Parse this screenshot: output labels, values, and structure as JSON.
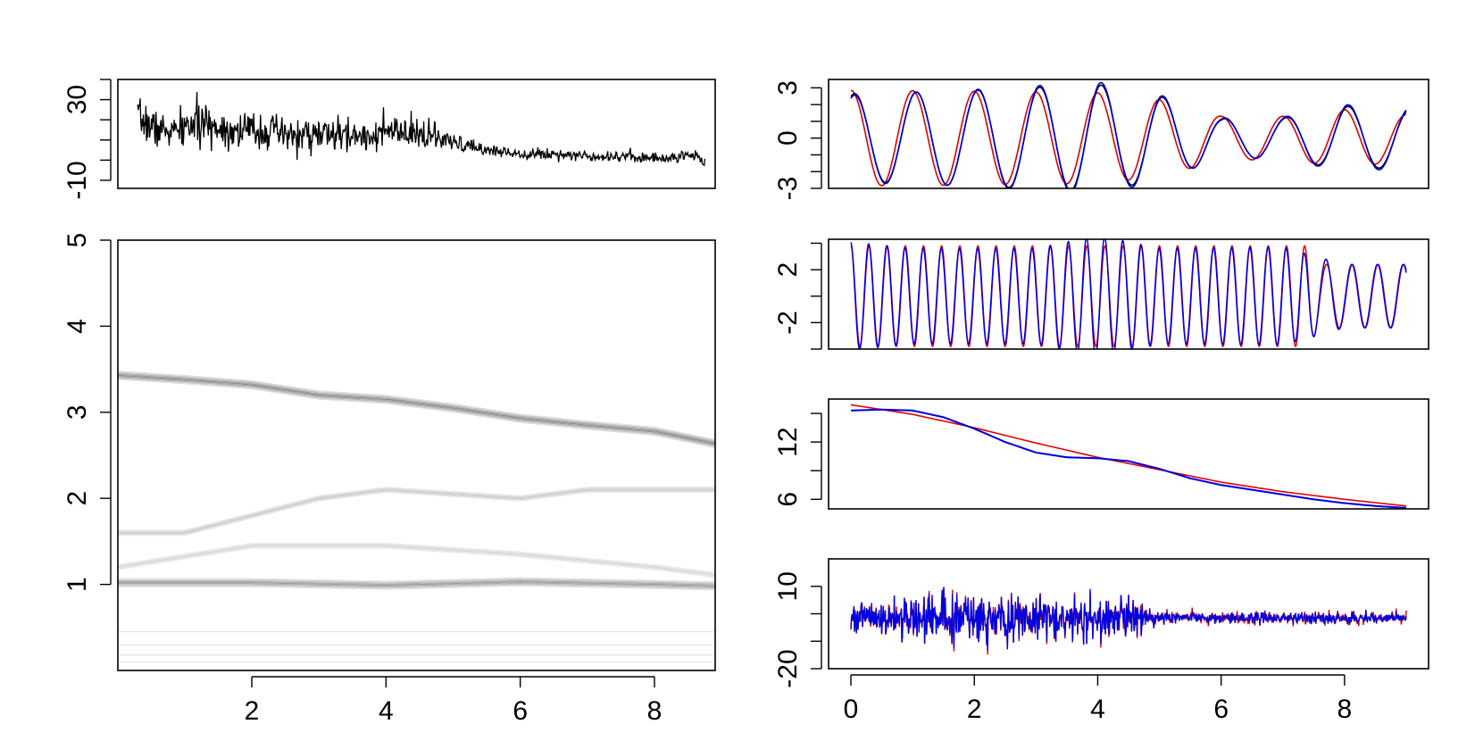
{
  "chart_data": [
    {
      "id": "signal",
      "type": "line",
      "xlim": [
        0,
        9
      ],
      "ylim": [
        -14,
        40
      ],
      "yticks": [
        -10,
        0,
        10,
        20,
        30,
        40
      ],
      "ytick_labels": [
        "-10",
        "30"
      ],
      "series": [
        {
          "name": "signal",
          "color": "#000000",
          "x": [
            0.3,
            0.6,
            0.9,
            1.1,
            1.4,
            1.7,
            2.0,
            2.3,
            2.45,
            2.7,
            3.0,
            3.3,
            3.6,
            3.9,
            4.1,
            4.3,
            4.6,
            4.9,
            5.2,
            5.5,
            5.8,
            6.1,
            6.4,
            6.7,
            7.0,
            7.3,
            7.6,
            7.9,
            8.2,
            8.45,
            8.6,
            8.75
          ],
          "values": [
            21,
            15,
            14,
            18,
            17,
            15,
            15,
            14,
            12,
            12,
            13,
            12,
            12,
            13,
            14,
            12,
            13,
            9,
            7,
            5,
            4,
            3,
            3,
            3,
            2,
            2,
            2,
            1,
            1,
            2,
            3,
            -1
          ],
          "noise_amp": [
            10,
            10,
            10,
            12,
            10,
            10,
            10,
            10,
            12,
            9,
            9,
            9,
            9,
            9,
            10,
            9,
            8,
            6,
            4,
            3,
            3,
            3,
            3,
            3,
            3,
            3,
            3,
            3,
            3,
            3,
            3,
            3
          ]
        }
      ]
    },
    {
      "id": "spectrogram",
      "type": "heatmap",
      "xlim": [
        0,
        9
      ],
      "ylim": [
        0,
        5
      ],
      "yticks": [
        1,
        2,
        3,
        4,
        5
      ],
      "ytick_labels": [
        "1",
        "2",
        "3",
        "4",
        "5"
      ],
      "ridges": [
        {
          "x": [
            0,
            1,
            2,
            3,
            4,
            5,
            6,
            7,
            8,
            9
          ],
          "y": [
            3.43,
            3.38,
            3.32,
            3.2,
            3.15,
            3.05,
            2.93,
            2.85,
            2.78,
            2.62
          ],
          "weight": 0.8
        },
        {
          "x": [
            0,
            2,
            4,
            6,
            8,
            9
          ],
          "y": [
            1.02,
            1.02,
            0.99,
            1.03,
            1.0,
            0.98
          ],
          "weight": 0.7
        },
        {
          "x": [
            0,
            1,
            2,
            3,
            4,
            5,
            6,
            7
          ],
          "y": [
            1.6,
            1.6,
            1.8,
            2.0,
            2.1,
            2.05,
            2.0,
            2.1
          ],
          "weight": 0.35
        },
        {
          "x": [
            0,
            2,
            4,
            6,
            8,
            9
          ],
          "y": [
            1.2,
            1.45,
            1.45,
            1.35,
            1.2,
            1.1
          ],
          "weight": 0.25
        },
        {
          "x": [
            0,
            9
          ],
          "y": [
            0.45,
            0.45
          ],
          "weight": 0.15
        },
        {
          "x": [
            0,
            9
          ],
          "y": [
            0.3,
            0.3
          ],
          "weight": 0.15
        },
        {
          "x": [
            0,
            9
          ],
          "y": [
            0.18,
            0.18
          ],
          "weight": 0.15
        },
        {
          "x": [
            0,
            9
          ],
          "y": [
            0.1,
            0.1
          ],
          "weight": 0.15
        }
      ],
      "xticks": [
        2,
        4,
        6,
        8
      ],
      "xtick_labels": [
        "2",
        "4",
        "6",
        "8"
      ]
    },
    {
      "id": "component-1",
      "type": "line",
      "xlim": [
        0,
        9
      ],
      "ylim": [
        -3,
        3.5
      ],
      "yticks": [
        -3,
        -2,
        -1,
        0,
        1,
        2,
        3
      ],
      "ytick_labels": [
        "-3",
        "0",
        "3"
      ],
      "series": [
        {
          "name": "true",
          "color": "#e00000",
          "freq": 1.0,
          "amp_x": [
            0,
            2,
            4,
            5,
            6,
            7,
            8,
            9
          ],
          "amp": [
            2.85,
            2.8,
            2.7,
            2.3,
            1.3,
            1.3,
            1.7,
            1.4
          ]
        },
        {
          "name": "estimate-black",
          "color": "#000000",
          "freq": 1.0,
          "amp_x": [
            0,
            2,
            4,
            5,
            6,
            7,
            8,
            9
          ],
          "amp": [
            2.65,
            2.85,
            3.2,
            2.5,
            1.2,
            1.2,
            1.9,
            1.7
          ]
        },
        {
          "name": "estimate-blue",
          "color": "#0000e0",
          "freq": 1.0,
          "amp_x": [
            0,
            2,
            4,
            5,
            6,
            7,
            8,
            9
          ],
          "amp": [
            2.55,
            2.9,
            3.35,
            2.6,
            1.15,
            1.25,
            2.0,
            1.8
          ]
        }
      ]
    },
    {
      "id": "component-2",
      "type": "line",
      "xlim": [
        0,
        9
      ],
      "ylim": [
        -4,
        4.3
      ],
      "yticks": [
        -4,
        -2,
        0,
        2,
        4
      ],
      "ytick_labels": [
        "-2",
        "2"
      ],
      "series": [
        {
          "name": "true",
          "color": "#e00000",
          "freq_x": [
            0,
            7.4,
            7.6,
            9
          ],
          "freq": [
            3.4,
            3.4,
            2.4,
            2.4
          ],
          "amp_x": [
            0,
            7.4,
            7.6,
            9
          ],
          "amp": [
            3.8,
            3.8,
            2.4,
            2.4
          ]
        },
        {
          "name": "estimate-blue",
          "color": "#0000e0",
          "freq_x": [
            0,
            7.4,
            7.6,
            9
          ],
          "freq": [
            3.4,
            3.4,
            2.4,
            2.4
          ],
          "amp_x": [
            0,
            1,
            3,
            4,
            5,
            7,
            8,
            9
          ],
          "amp": [
            4.1,
            3.6,
            3.6,
            4.6,
            3.6,
            3.7,
            2.4,
            2.4
          ]
        }
      ]
    },
    {
      "id": "trend",
      "type": "line",
      "xlim": [
        0,
        9
      ],
      "ylim": [
        5,
        16.5
      ],
      "yticks": [
        6,
        9,
        12,
        15
      ],
      "ytick_labels": [
        "6",
        "12"
      ],
      "series": [
        {
          "name": "true",
          "color": "#e00000",
          "x": [
            0,
            1,
            2,
            3,
            4,
            5,
            6,
            7,
            8,
            9
          ],
          "values": [
            15.9,
            14.9,
            13.5,
            11.9,
            10.4,
            9.1,
            7.8,
            6.8,
            6.0,
            5.3
          ]
        },
        {
          "name": "estimate-black",
          "color": "#000000",
          "x": [
            0,
            0.5,
            1,
            1.5,
            2,
            2.5,
            3,
            3.5,
            4,
            4.5,
            5,
            5.5,
            6,
            6.5,
            7,
            7.5,
            8,
            8.5,
            9
          ],
          "values": [
            15.3,
            15.4,
            15.3,
            14.6,
            13.4,
            12.0,
            10.9,
            10.4,
            10.3,
            10.0,
            9.2,
            8.2,
            7.5,
            7.0,
            6.5,
            6.0,
            5.6,
            5.3,
            5.1
          ]
        },
        {
          "name": "estimate-blue",
          "color": "#0000e0",
          "x": [
            0,
            0.5,
            1,
            1.5,
            2,
            2.5,
            3,
            3.5,
            4,
            4.5,
            5,
            5.5,
            6,
            6.5,
            7,
            7.5,
            8,
            8.5,
            9
          ],
          "values": [
            15.3,
            15.4,
            15.3,
            14.6,
            13.4,
            12.0,
            10.9,
            10.4,
            10.3,
            10.0,
            9.2,
            8.2,
            7.5,
            7.0,
            6.5,
            6.0,
            5.6,
            5.3,
            5.1
          ]
        }
      ]
    },
    {
      "id": "residual",
      "type": "line",
      "xlim": [
        0,
        9
      ],
      "ylim": [
        -20,
        20
      ],
      "yticks": [
        -20,
        -10,
        0,
        10
      ],
      "ytick_labels": [
        "-20",
        "10"
      ],
      "series": [
        {
          "name": "true",
          "color": "#e00000",
          "noise_x": [
            0,
            0.5,
            1,
            2,
            3,
            4,
            4.5,
            5,
            5.5,
            6,
            7,
            8,
            9
          ],
          "noise_amp": [
            6,
            7,
            10,
            11,
            9,
            9,
            9,
            3,
            2,
            2.5,
            2.5,
            2.5,
            2
          ]
        },
        {
          "name": "estimate-blue",
          "color": "#0000e0",
          "noise_x": [
            0,
            0.5,
            1,
            2,
            3,
            4,
            4.5,
            5,
            5.5,
            6,
            7,
            8,
            9
          ],
          "noise_amp": [
            6,
            7,
            10,
            11,
            9,
            9,
            9,
            3,
            2,
            2.5,
            2.5,
            2.5,
            2
          ]
        }
      ],
      "xticks": [
        0,
        2,
        4,
        6,
        8
      ],
      "xtick_labels": [
        "0",
        "2",
        "4",
        "6",
        "8"
      ]
    }
  ]
}
